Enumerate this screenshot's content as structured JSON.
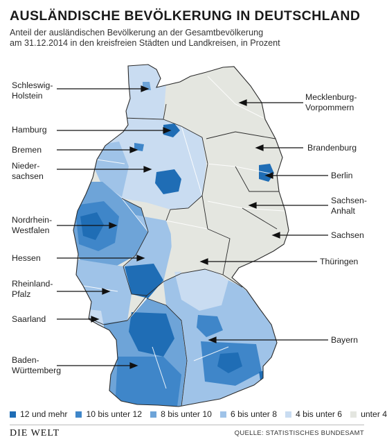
{
  "title": "AUSLÄNDISCHE BEVÖLKERUNG IN DEUTSCHLAND",
  "subtitle_line1": "Anteil der ausländischen Bevölkerung an der Gesamtbevölkerung",
  "subtitle_line2": "am 31.12.2014 in den kreisfreien Städten und Landkreisen, in Prozent",
  "colors": {
    "c12": "#1f6db5",
    "c10": "#3f86c9",
    "c8": "#6ea4d8",
    "c6": "#9fc3e8",
    "c4": "#c9dcf1",
    "c0": "#e4e6e0",
    "border": "#ffffff",
    "arrow": "#111111"
  },
  "labels": {
    "schleswig_1": "Schleswig-",
    "schleswig_2": "Holstein",
    "hamburg": "Hamburg",
    "bremen": "Bremen",
    "nieder_1": "Nieder-",
    "nieder_2": "sachsen",
    "nrw_1": "Nordrhein-",
    "nrw_2": "Westfalen",
    "hessen": "Hessen",
    "rlp_1": "Rheinland-",
    "rlp_2": "Pfalz",
    "saarland": "Saarland",
    "bw_1": "Baden-",
    "bw_2": "Württemberg",
    "mv_1": "Mecklenburg-",
    "mv_2": "Vorpommern",
    "brandenburg": "Brandenburg",
    "berlin": "Berlin",
    "sa_1": "Sachsen-",
    "sa_2": "Anhalt",
    "sachsen": "Sachsen",
    "thueringen": "Thüringen",
    "bayern": "Bayern"
  },
  "legend": [
    {
      "label": "12 und mehr",
      "color": "#1f6db5"
    },
    {
      "label": "10 bis unter 12",
      "color": "#3f86c9"
    },
    {
      "label": "8 bis unter 10",
      "color": "#6ea4d8"
    },
    {
      "label": "6 bis unter 8",
      "color": "#9fc3e8"
    },
    {
      "label": "4 bis unter 6",
      "color": "#c9dcf1"
    },
    {
      "label": "unter 4",
      "color": "#e4e6e0"
    }
  ],
  "logo": "DIE WELT",
  "source": "QUELLE: STATISTISCHES BUNDESAMT"
}
